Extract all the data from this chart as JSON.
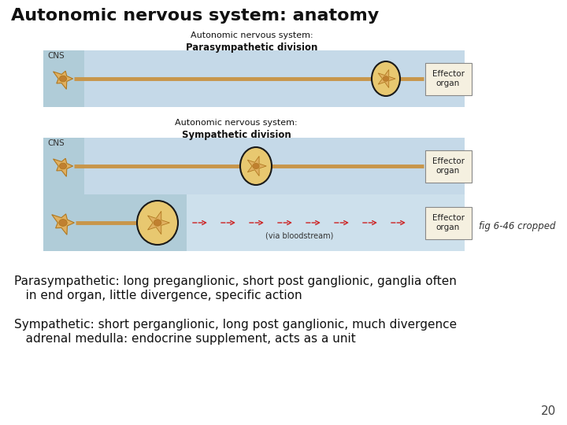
{
  "title": "Autonomic nervous system: anatomy",
  "title_fontsize": 16,
  "title_fontweight": "bold",
  "title_color": "#111111",
  "background_color": "#ffffff",
  "para_header_line1": "Autonomic nervous system:",
  "para_header_line2": "Parasympathetic division",
  "symp_header_line1": "Autonomic nervous system:",
  "symp_header_line2": "Sympathetic division",
  "cns_label": "CNS",
  "effector_label": "Effector\norgan",
  "via_bloodstream": "(via bloodstream)",
  "fig_credit": "fig 6-46 cropped",
  "para_text_line1": "Parasympathetic: long preganglionic, short post ganglionic, ganglia often",
  "para_text_line2": "   in end organ, little divergence, specific action",
  "symp_text_line1": "Sympathetic: short perganglionic, long post ganglionic, much divergence",
  "symp_text_line2": "   adrenal medulla: endocrine supplement, acts as a unit",
  "page_number": "20",
  "band_blue": "#c5d9e8",
  "cns_blue": "#b0ccd8",
  "neuron_fill": "#e0b060",
  "neuron_outline": "#b07820",
  "neuron_nucleus": "#c08030",
  "axon_color": "#c8964a",
  "ganglia_fill": "#e8c870",
  "ganglia_outline": "#1a1a1a",
  "effector_fill": "#f5f0e0",
  "effector_border": "#888888",
  "arrow_color": "#cc2222",
  "text_color": "#111111",
  "header_color": "#111111"
}
